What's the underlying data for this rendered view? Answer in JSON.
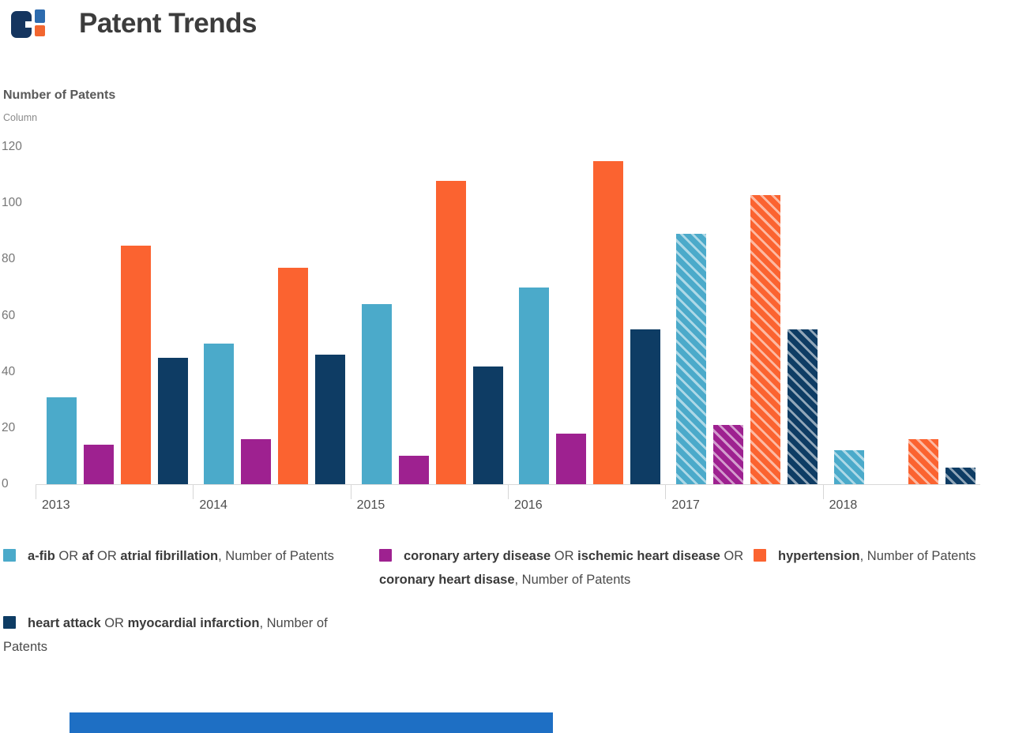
{
  "header": {
    "title": "Patent Trends",
    "logo": {
      "main_color": "#15355F",
      "top_square_color": "#2D6BAE",
      "bottom_square_color": "#F2662F"
    }
  },
  "chart_data": {
    "type": "bar",
    "title": "Patent Trends",
    "axis_title": "Number of Patents",
    "axis_subtitle": "Column",
    "categories": [
      "2013",
      "2014",
      "2015",
      "2016",
      "2017",
      "2018"
    ],
    "hatched": [
      false,
      false,
      false,
      false,
      true,
      true
    ],
    "series": [
      {
        "name": "a-fib OR af OR atrial fibrillation, Number of Patents",
        "color": "#4BAACA",
        "values": [
          31,
          50,
          64,
          70,
          89,
          12
        ]
      },
      {
        "name": "coronary artery disease OR ischemic heart disease OR coronary heart disase, Number of Patents",
        "color": "#9E2190",
        "values": [
          14,
          16,
          10,
          18,
          21,
          null
        ]
      },
      {
        "name": "hypertension, Number of Patents",
        "color": "#FB6330",
        "values": [
          85,
          77,
          108,
          115,
          103,
          16
        ]
      },
      {
        "name": "heart attack OR myocardial infarction, Number of Patents",
        "color": "#0E3C64",
        "values": [
          45,
          46,
          42,
          55,
          55,
          6
        ]
      }
    ],
    "ylim": [
      0,
      120
    ],
    "yticks": [
      0,
      20,
      40,
      60,
      80,
      100,
      120
    ],
    "grid": false,
    "legend_position": "bottom"
  },
  "legend": {
    "items": [
      {
        "series": 0,
        "segments": [
          {
            "t": "a-fib",
            "b": true
          },
          {
            "t": " OR ",
            "b": false
          },
          {
            "t": "af",
            "b": true
          },
          {
            "t": " OR ",
            "b": false
          },
          {
            "t": "atrial fibrillation",
            "b": true
          },
          {
            "t": ", Number of Patents",
            "b": false
          }
        ]
      },
      {
        "series": 1,
        "segments": [
          {
            "t": "coronary artery disease",
            "b": true
          },
          {
            "t": " OR ",
            "b": false
          },
          {
            "t": "ischemic heart disease",
            "b": true
          },
          {
            "t": " OR ",
            "b": false
          },
          {
            "t": "coronary heart disase",
            "b": true
          },
          {
            "t": ", Number of Patents",
            "b": false
          }
        ]
      },
      {
        "series": 2,
        "segments": [
          {
            "t": "hypertension",
            "b": true
          },
          {
            "t": ", Number of Patents",
            "b": false
          }
        ]
      },
      {
        "series": 3,
        "segments": [
          {
            "t": "heart attack",
            "b": true
          },
          {
            "t": " OR ",
            "b": false
          },
          {
            "t": "myocardial infarction",
            "b": true
          },
          {
            "t": ", Number of Patents",
            "b": false
          }
        ]
      }
    ]
  },
  "footer_bar": {
    "color": "#1E6FC4"
  }
}
